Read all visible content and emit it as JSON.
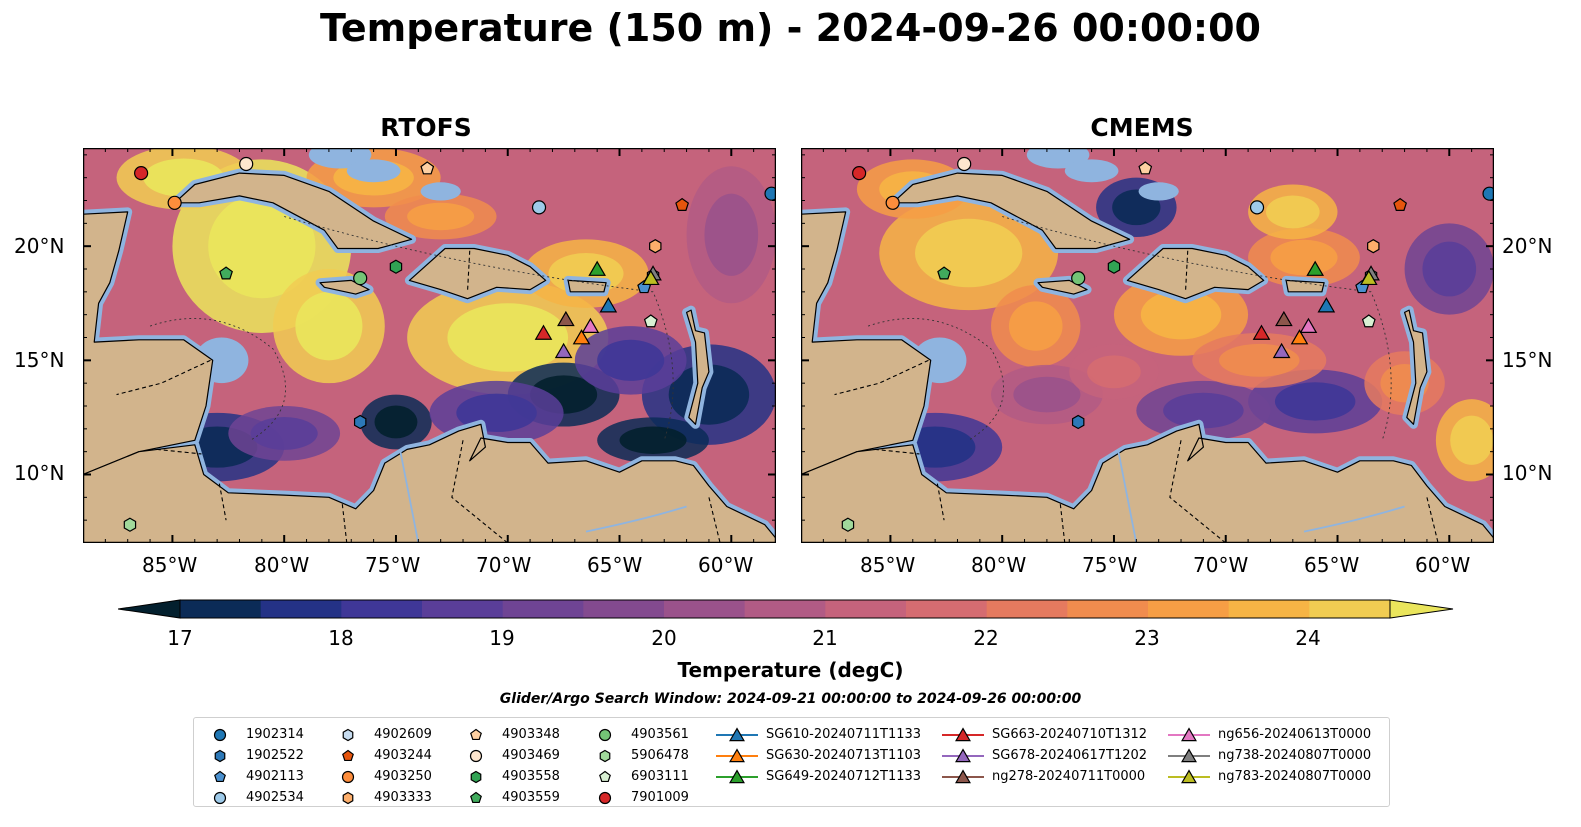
{
  "title": "Temperature (150 m) - 2024-09-26 00:00:00",
  "panels": [
    {
      "title": "RTOFS"
    },
    {
      "title": "CMEMS"
    }
  ],
  "axes": {
    "lat_ticks": [
      "20°N",
      "15°N",
      "10°N"
    ],
    "lon_ticks": [
      "85°W",
      "80°W",
      "75°W",
      "70°W",
      "65°W",
      "60°W"
    ]
  },
  "colorbar": {
    "label": "Temperature (degC)",
    "ticks": [
      "17",
      "18",
      "19",
      "20",
      "21",
      "22",
      "23",
      "24"
    ],
    "range": [
      17,
      24.5
    ],
    "colors": [
      "#03202e",
      "#0b2b57",
      "#243286",
      "#3f3797",
      "#5a3e99",
      "#6f4494",
      "#834a8f",
      "#9a528b",
      "#b15b85",
      "#c5637c",
      "#d56c71",
      "#e57a5f",
      "#f08c4e",
      "#f69e45",
      "#f6b445",
      "#f1cc52",
      "#eae55c"
    ]
  },
  "search_window": "Glider/Argo Search Window: 2024-09-21 00:00:00 to 2024-09-26 00:00:00",
  "legend": {
    "columns": [
      [
        {
          "label": "1902314",
          "marker": "circle",
          "color": "#1f77b4"
        },
        {
          "label": "1902522",
          "marker": "hexagon",
          "color": "#2c78b7"
        },
        {
          "label": "4902113",
          "marker": "pentagon",
          "color": "#4a90cf"
        },
        {
          "label": "4902534",
          "marker": "circle",
          "color": "#9ecae9"
        }
      ],
      [
        {
          "label": "4902609",
          "marker": "hexagon",
          "color": "#c6dbef"
        },
        {
          "label": "4903244",
          "marker": "pentagon",
          "color": "#e6550d"
        },
        {
          "label": "4903250",
          "marker": "circle",
          "color": "#fd8d3c"
        },
        {
          "label": "4903333",
          "marker": "hexagon",
          "color": "#fdae6b"
        }
      ],
      [
        {
          "label": "4903348",
          "marker": "pentagon",
          "color": "#fdd0a2"
        },
        {
          "label": "4903469",
          "marker": "circle",
          "color": "#fee6ce"
        },
        {
          "label": "4903558",
          "marker": "hexagon",
          "color": "#31a354"
        },
        {
          "label": "4903559",
          "marker": "pentagon",
          "color": "#41ab5d"
        }
      ],
      [
        {
          "label": "4903561",
          "marker": "circle",
          "color": "#74c476"
        },
        {
          "label": "5906478",
          "marker": "hexagon",
          "color": "#a1d99b"
        },
        {
          "label": "6903111",
          "marker": "pentagon",
          "color": "#d9f0d3"
        },
        {
          "label": "7901009",
          "marker": "circle",
          "color": "#d62728"
        }
      ],
      [
        {
          "label": "SG610-20240711T1133",
          "marker": "triangle",
          "color": "#1f77b4"
        },
        {
          "label": "SG630-20240713T1103",
          "marker": "triangle",
          "color": "#ff7f0e"
        },
        {
          "label": "SG649-20240712T1133",
          "marker": "triangle",
          "color": "#2ca02c"
        }
      ],
      [
        {
          "label": "SG663-20240710T1312",
          "marker": "triangle",
          "color": "#d62728"
        },
        {
          "label": "SG678-20240617T1202",
          "marker": "triangle",
          "color": "#9467bd"
        },
        {
          "label": "ng278-20240711T0000",
          "marker": "triangle",
          "color": "#8c564b"
        }
      ],
      [
        {
          "label": "ng656-20240613T0000",
          "marker": "triangle",
          "color": "#e377c2"
        },
        {
          "label": "ng738-20240807T0000",
          "marker": "triangle",
          "color": "#7f7f7f"
        },
        {
          "label": "ng783-20240807T0000",
          "marker": "triangle",
          "color": "#bcbd22"
        }
      ]
    ]
  },
  "map_extent": {
    "lon": [
      -89,
      -58
    ],
    "lat": [
      7,
      24.3
    ]
  },
  "observations": [
    {
      "id": "1902314",
      "lon": -58.2,
      "lat": 22.3
    },
    {
      "id": "1902522",
      "lon": -76.6,
      "lat": 12.3
    },
    {
      "id": "4902113",
      "lon": -63.9,
      "lat": 18.2
    },
    {
      "id": "4902534",
      "lon": -68.6,
      "lat": 21.7
    },
    {
      "id": "4902609",
      "lon": -63.5,
      "lat": 18.7
    },
    {
      "id": "4903244",
      "lon": -62.2,
      "lat": 21.8
    },
    {
      "id": "4903250",
      "lon": -84.9,
      "lat": 21.9
    },
    {
      "id": "4903333",
      "lon": -63.4,
      "lat": 20.0
    },
    {
      "id": "4903348",
      "lon": -73.6,
      "lat": 23.4
    },
    {
      "id": "4903469",
      "lon": -81.7,
      "lat": 23.6
    },
    {
      "id": "4903558",
      "lon": -75.0,
      "lat": 19.1
    },
    {
      "id": "4903559",
      "lon": -82.6,
      "lat": 18.8
    },
    {
      "id": "4903561",
      "lon": -76.6,
      "lat": 18.6
    },
    {
      "id": "5906478",
      "lon": -86.9,
      "lat": 7.8
    },
    {
      "id": "6903111",
      "lon": -63.6,
      "lat": 16.7
    },
    {
      "id": "7901009",
      "lon": -86.4,
      "lat": 23.2
    },
    {
      "id": "SG610-20240711T1133",
      "lon": -65.5,
      "lat": 17.4
    },
    {
      "id": "SG630-20240713T1103",
      "lon": -66.7,
      "lat": 16.0
    },
    {
      "id": "SG649-20240712T1133",
      "lon": -66.0,
      "lat": 19.0
    },
    {
      "id": "SG663-20240710T1312",
      "lon": -68.4,
      "lat": 16.2
    },
    {
      "id": "SG678-20240617T1202",
      "lon": -67.5,
      "lat": 15.4
    },
    {
      "id": "ng278-20240711T0000",
      "lon": -67.4,
      "lat": 16.8
    },
    {
      "id": "ng656-20240613T0000",
      "lon": -66.3,
      "lat": 16.5
    },
    {
      "id": "ng738-20240807T0000",
      "lon": -63.5,
      "lat": 18.8
    },
    {
      "id": "ng783-20240807T0000",
      "lon": -63.6,
      "lat": 18.6
    }
  ]
}
